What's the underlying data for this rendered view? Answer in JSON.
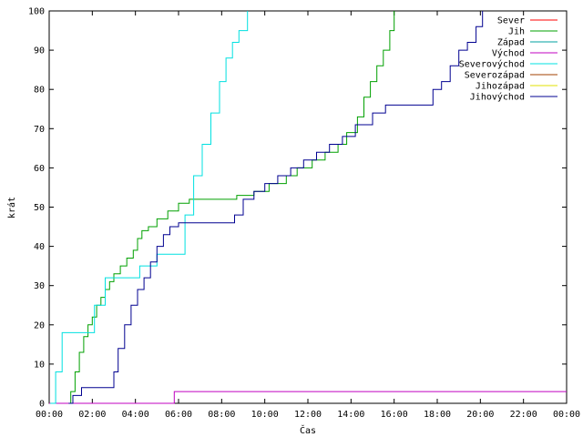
{
  "chart_data": {
    "type": "line",
    "xlabel": "Čas",
    "ylabel": "krát",
    "x_unit": "hours",
    "xlim": [
      0,
      24
    ],
    "ylim": [
      0,
      100
    ],
    "x_ticks": [
      {
        "value": 0,
        "label": "00:00"
      },
      {
        "value": 2,
        "label": "02:00"
      },
      {
        "value": 4,
        "label": "04:00"
      },
      {
        "value": 6,
        "label": "06:00"
      },
      {
        "value": 8,
        "label": "08:00"
      },
      {
        "value": 10,
        "label": "10:00"
      },
      {
        "value": 12,
        "label": "12:00"
      },
      {
        "value": 14,
        "label": "14:00"
      },
      {
        "value": 16,
        "label": "16:00"
      },
      {
        "value": 18,
        "label": "18:00"
      },
      {
        "value": 20,
        "label": "20:00"
      },
      {
        "value": 22,
        "label": "22:00"
      },
      {
        "value": 24,
        "label": "00:00"
      }
    ],
    "y_ticks": [
      0,
      10,
      20,
      30,
      40,
      50,
      60,
      70,
      80,
      90,
      100
    ],
    "grid": false,
    "legend_position": "top-right",
    "series": [
      {
        "name": "Sever",
        "color": "#ff0000",
        "x": [],
        "y": []
      },
      {
        "name": "Jih",
        "color": "#00a000",
        "x": [
          0.9,
          1.0,
          1.2,
          1.4,
          1.6,
          1.8,
          2.0,
          2.2,
          2.4,
          2.6,
          2.8,
          3.0,
          3.3,
          3.6,
          3.9,
          4.1,
          4.3,
          4.6,
          5.0,
          5.5,
          6.0,
          6.5,
          7.0,
          8.0,
          8.7,
          9.5,
          10.2,
          11.0,
          11.5,
          12.2,
          12.8,
          13.4,
          13.8,
          14.3,
          14.6,
          14.9,
          15.2,
          15.5,
          15.8,
          16.0
        ],
        "y": [
          0,
          3,
          8,
          13,
          17,
          20,
          22,
          25,
          27,
          29,
          31,
          33,
          35,
          37,
          39,
          42,
          44,
          45,
          47,
          49,
          51,
          52,
          52,
          52,
          53,
          54,
          56,
          58,
          60,
          62,
          64,
          66,
          69,
          73,
          78,
          82,
          86,
          90,
          95,
          100
        ]
      },
      {
        "name": "Západ",
        "color": "#00a0a0",
        "x": [],
        "y": []
      },
      {
        "name": "Východ",
        "color": "#c000c0",
        "x": [
          0,
          5.7,
          5.8,
          24
        ],
        "y": [
          0,
          0,
          3,
          3
        ]
      },
      {
        "name": "Severovýchod",
        "color": "#00e0e0",
        "x": [
          0.05,
          0.3,
          0.6,
          1.8,
          2.1,
          2.6,
          3.0,
          4.0,
          4.2,
          5.0,
          5.9,
          6.3,
          6.7,
          7.1,
          7.5,
          7.9,
          8.2,
          8.5,
          8.8,
          9.2
        ],
        "y": [
          0,
          8,
          18,
          18,
          25,
          32,
          32,
          32,
          35,
          38,
          38,
          48,
          58,
          66,
          74,
          82,
          88,
          92,
          95,
          100
        ]
      },
      {
        "name": "Severozápad",
        "color": "#a04000",
        "x": [],
        "y": []
      },
      {
        "name": "Jihozápad",
        "color": "#e0e000",
        "x": [],
        "y": []
      },
      {
        "name": "Jihovýchod",
        "color": "#000090",
        "x": [
          0.9,
          1.1,
          1.5,
          2.8,
          3.0,
          3.2,
          3.5,
          3.8,
          4.1,
          4.4,
          4.7,
          5.0,
          5.3,
          5.6,
          6.0,
          6.5,
          7.0,
          8.0,
          8.6,
          9.0,
          9.5,
          10.0,
          10.6,
          11.2,
          11.8,
          12.4,
          13.0,
          13.6,
          14.2,
          15.0,
          15.6,
          16.5,
          17.3,
          17.8,
          18.2,
          18.6,
          19.0,
          19.4,
          19.8,
          20.1
        ],
        "y": [
          0,
          2,
          4,
          4,
          8,
          14,
          20,
          25,
          29,
          32,
          36,
          40,
          43,
          45,
          46,
          46,
          46,
          46,
          48,
          52,
          54,
          56,
          58,
          60,
          62,
          64,
          66,
          68,
          71,
          74,
          76,
          76,
          76,
          80,
          82,
          86,
          90,
          92,
          96,
          100
        ]
      }
    ]
  }
}
